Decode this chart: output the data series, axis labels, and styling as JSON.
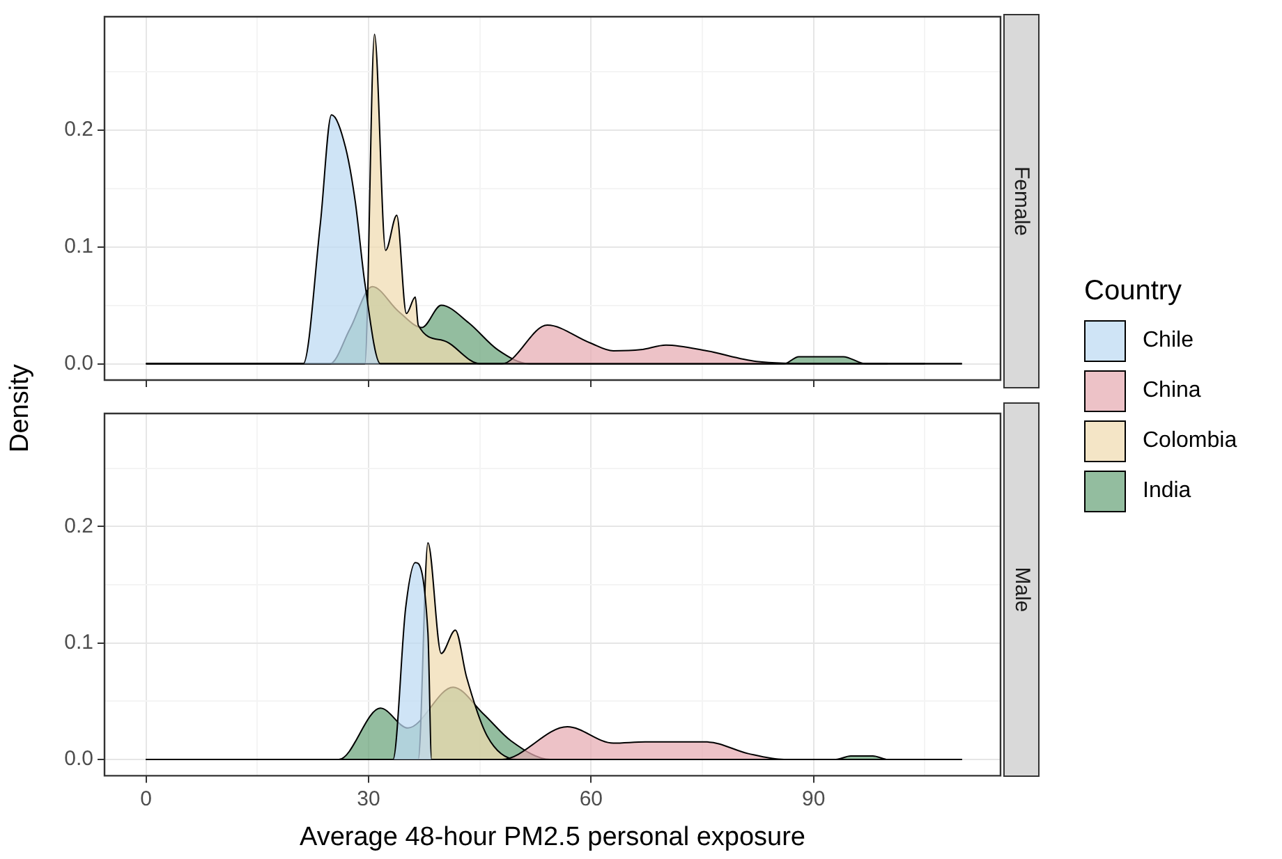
{
  "chart_data": [
    {
      "type": "area",
      "title": "Female",
      "ylabel": "Density",
      "legend": "right",
      "legend_title": "Country",
      "tick_labels": "y",
      "grid": true,
      "xlim": [
        -5.6,
        115.2
      ],
      "xticks": [
        0,
        {
          "value": 15,
          "label": null
        },
        30,
        {
          "value": 45,
          "label": null
        },
        60,
        {
          "value": 75,
          "label": null
        },
        90,
        {
          "value": 105,
          "label": null
        }
      ],
      "ylim": [
        -0.014,
        0.297
      ],
      "yticks": [
        {
          "value": 0,
          "label": "0.0"
        },
        {
          "value": 0.05,
          "label": null
        },
        {
          "value": 0.1,
          "label": "0.1"
        },
        {
          "value": 0.15,
          "label": null
        },
        {
          "value": 0.2,
          "label": "0.2"
        },
        {
          "value": 0.25,
          "label": null
        }
      ],
      "series": [
        {
          "name": "Chile",
          "color": "#bddaf2",
          "x": [
            0,
            21.2,
            23.5,
            25,
            26.9,
            28.2,
            29.5,
            31.6,
            105
          ],
          "values": [
            0,
            0,
            0.12,
            0.213,
            0.185,
            0.139,
            0.069,
            0,
            0
          ]
        },
        {
          "name": "China",
          "color": "#e6aab2",
          "x": [
            0,
            48,
            54.1,
            59.8,
            63,
            66.7,
            70.1,
            75.6,
            82.3,
            91,
            110
          ],
          "values": [
            0,
            0,
            0.033,
            0.018,
            0.011,
            0.012,
            0.016,
            0.011,
            0.002,
            0,
            0
          ]
        },
        {
          "name": "Colombia",
          "color": "#f0dbb0",
          "x": [
            0,
            29.5,
            30.8,
            32.3,
            33.8,
            35.1,
            36.3,
            36.7,
            40,
            45,
            100
          ],
          "values": [
            0,
            0,
            0.282,
            0.097,
            0.127,
            0.043,
            0.057,
            0.033,
            0.02,
            0,
            0
          ]
        },
        {
          "name": "India",
          "color": "#6aa37a",
          "x": [
            0,
            24.8,
            27.5,
            30.5,
            34,
            37.2,
            39.8,
            43.5,
            47.4,
            51.7,
            86,
            88,
            94,
            97,
            110
          ],
          "values": [
            0,
            0,
            0.03,
            0.066,
            0.045,
            0.031,
            0.05,
            0.035,
            0.012,
            0,
            0,
            0.006,
            0.006,
            0,
            0
          ]
        }
      ]
    },
    {
      "type": "area",
      "title": "Male",
      "xlabel": "Average 48-hour PM2.5 personal exposure",
      "grid": true,
      "xlim": [
        -5.6,
        115.2
      ],
      "xticks": [
        0,
        {
          "value": 15,
          "label": null
        },
        30,
        {
          "value": 45,
          "label": null
        },
        60,
        {
          "value": 75,
          "label": null
        },
        90,
        {
          "value": 105,
          "label": null
        }
      ],
      "ylim": [
        -0.014,
        0.297
      ],
      "yticks": [
        {
          "value": 0,
          "label": "0.0"
        },
        {
          "value": 0.05,
          "label": null
        },
        {
          "value": 0.1,
          "label": "0.1"
        },
        {
          "value": 0.15,
          "label": null
        },
        {
          "value": 0.2,
          "label": "0.2"
        },
        {
          "value": 0.25,
          "label": null
        }
      ],
      "series": [
        {
          "color": "#bddaf2",
          "x": [
            0,
            33.3,
            35,
            36.3,
            38,
            38.5,
            105
          ],
          "values": [
            0,
            0,
            0.13,
            0.169,
            0.109,
            0,
            0
          ]
        },
        {
          "color": "#e6aab2",
          "x": [
            0,
            48,
            56.8,
            63,
            67.3,
            75.6,
            81.2,
            86,
            110
          ],
          "values": [
            0,
            0,
            0.028,
            0.014,
            0.015,
            0.015,
            0.005,
            0,
            0
          ]
        },
        {
          "color": "#f0dbb0",
          "x": [
            0,
            36.7,
            38,
            39.8,
            41.7,
            43.2,
            46,
            50,
            100
          ],
          "values": [
            0,
            0,
            0.186,
            0.091,
            0.111,
            0.071,
            0.02,
            0,
            0
          ]
        },
        {
          "color": "#6aa37a",
          "x": [
            0,
            26,
            31.6,
            35.3,
            41.4,
            45.5,
            49.2,
            54.5,
            93,
            95,
            98,
            100,
            110
          ],
          "values": [
            0,
            0,
            0.044,
            0.027,
            0.062,
            0.039,
            0.016,
            0,
            0,
            0.003,
            0.003,
            0,
            0
          ]
        }
      ]
    }
  ]
}
